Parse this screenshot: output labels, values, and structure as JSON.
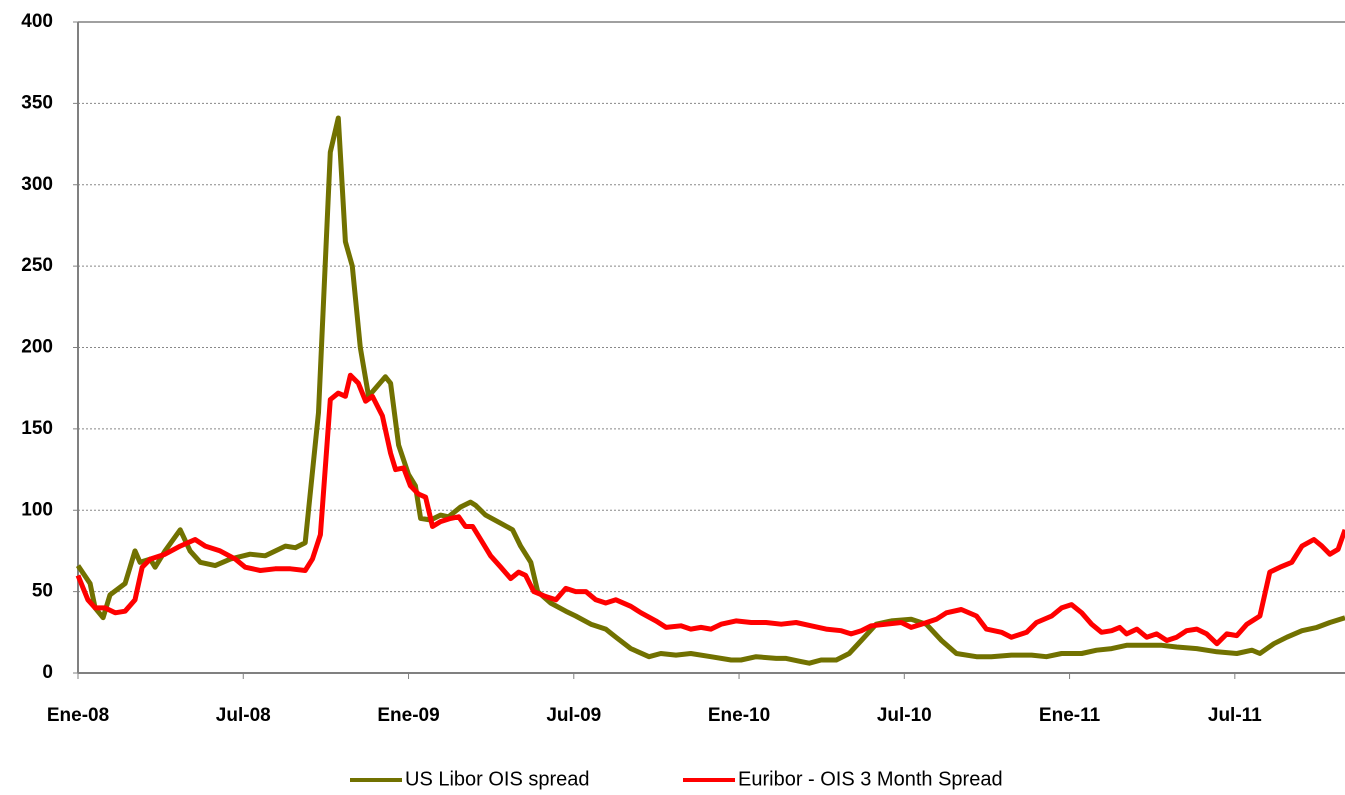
{
  "chart_data": {
    "type": "line",
    "xlim": [
      0,
      46
    ],
    "ylim": [
      0,
      400
    ],
    "yticks": [
      0,
      50,
      100,
      150,
      200,
      250,
      300,
      350,
      400
    ],
    "xticks": [
      {
        "value": 0,
        "label": "Ene-08"
      },
      {
        "value": 6,
        "label": "Jul-08"
      },
      {
        "value": 12,
        "label": "Ene-09"
      },
      {
        "value": 18,
        "label": "Jul-09"
      },
      {
        "value": 24,
        "label": "Ene-10"
      },
      {
        "value": 30,
        "label": "Jul-10"
      },
      {
        "value": 36,
        "label": "Ene-11"
      },
      {
        "value": 42,
        "label": "Jul-11"
      }
    ],
    "grid": true,
    "legend": "bottom",
    "series": [
      {
        "name": "US Libor OIS spread",
        "color": "#717100",
        "x": [
          0,
          0.44,
          0.62,
          0.91,
          1.16,
          1.71,
          2.07,
          2.25,
          2.62,
          2.8,
          3.16,
          3.71,
          4.07,
          4.44,
          4.98,
          5.53,
          6.25,
          6.8,
          7.53,
          7.89,
          8.25,
          8.73,
          9.16,
          9.45,
          9.71,
          9.96,
          10.25,
          10.55,
          10.8,
          11.16,
          11.35,
          11.64,
          12,
          12.25,
          12.44,
          12.8,
          13.16,
          13.45,
          13.89,
          14.25,
          14.44,
          14.8,
          15.35,
          15.78,
          16.07,
          16.44,
          16.69,
          17.16,
          17.71,
          18.07,
          18.62,
          19.16,
          19.53,
          20.07,
          20.73,
          21.16,
          21.71,
          22.25,
          22.98,
          23.71,
          24.07,
          24.62,
          25.35,
          25.71,
          26.25,
          26.55,
          26.98,
          27.53,
          28,
          28.44,
          28.98,
          29.53,
          30.25,
          30.8,
          31.35,
          31.89,
          32.62,
          33.16,
          33.89,
          34.62,
          35.16,
          35.71,
          36.44,
          36.98,
          37.53,
          38.07,
          38.8,
          39.35,
          39.89,
          40.62,
          41.35,
          42.07,
          42.62,
          42.91,
          43.42,
          43.89,
          44.44,
          44.98,
          45.45,
          46
        ],
        "values": [
          66,
          55,
          40,
          34,
          48,
          55,
          75,
          68,
          70,
          65,
          75,
          88,
          75,
          68,
          66,
          70,
          73,
          72,
          78,
          77,
          80,
          160,
          320,
          341,
          265,
          250,
          200,
          170,
          175,
          182,
          178,
          140,
          122,
          115,
          95,
          94,
          97,
          96,
          102,
          105,
          103,
          97,
          92,
          88,
          78,
          68,
          50,
          43,
          38,
          35,
          30,
          27,
          22,
          15,
          10,
          12,
          11,
          12,
          10,
          8,
          8,
          10,
          9,
          9,
          7,
          6,
          8,
          8,
          12,
          20,
          30,
          32,
          33,
          30,
          20,
          12,
          10,
          10,
          11,
          11,
          10,
          12,
          12,
          14,
          15,
          17,
          17,
          17,
          16,
          15,
          13,
          12,
          14,
          12,
          18,
          22,
          26,
          28,
          31,
          34
        ]
      },
      {
        "name": "Euribor - OIS 3 Month Spread",
        "color": "#ff0000",
        "x": [
          0,
          0.36,
          0.62,
          0.98,
          1.35,
          1.71,
          2.07,
          2.33,
          2.62,
          3.16,
          3.71,
          4.25,
          4.62,
          5.16,
          5.71,
          6.07,
          6.62,
          7.16,
          7.71,
          8.25,
          8.51,
          8.8,
          9.16,
          9.45,
          9.71,
          9.89,
          10.18,
          10.44,
          10.69,
          11.05,
          11.35,
          11.53,
          11.82,
          12.07,
          12.36,
          12.62,
          12.87,
          13.16,
          13.53,
          13.82,
          14.07,
          14.33,
          14.62,
          14.98,
          15.35,
          15.71,
          16,
          16.25,
          16.55,
          16.98,
          17.35,
          17.71,
          18.07,
          18.44,
          18.8,
          19.16,
          19.53,
          20.07,
          20.44,
          20.98,
          21.35,
          21.89,
          22.25,
          22.62,
          22.98,
          23.35,
          23.89,
          24.44,
          24.98,
          25.53,
          26.07,
          26.62,
          27.16,
          27.71,
          28.07,
          28.44,
          28.8,
          29.35,
          29.89,
          30.25,
          30.62,
          31.16,
          31.53,
          32.07,
          32.62,
          32.98,
          33.53,
          33.89,
          34.44,
          34.8,
          35.35,
          35.71,
          36.07,
          36.44,
          36.8,
          37.16,
          37.53,
          37.82,
          38.07,
          38.44,
          38.8,
          39.16,
          39.53,
          39.89,
          40.25,
          40.62,
          40.98,
          41.35,
          41.71,
          42.07,
          42.44,
          42.91,
          43.27,
          43.64,
          44.07,
          44.44,
          44.87,
          45.16,
          45.45,
          45.75,
          46
        ],
        "values": [
          60,
          45,
          40,
          40,
          37,
          38,
          45,
          65,
          70,
          73,
          78,
          82,
          78,
          75,
          70,
          65,
          63,
          64,
          64,
          63,
          70,
          85,
          168,
          172,
          170,
          183,
          178,
          167,
          170,
          158,
          135,
          125,
          126,
          115,
          110,
          108,
          90,
          93,
          95,
          96,
          90,
          90,
          82,
          72,
          65,
          58,
          62,
          60,
          50,
          47,
          45,
          52,
          50,
          50,
          45,
          43,
          45,
          41,
          37,
          32,
          28,
          29,
          27,
          28,
          27,
          30,
          32,
          31,
          31,
          30,
          31,
          29,
          27,
          26,
          24,
          26,
          29,
          30,
          31,
          28,
          30,
          33,
          37,
          39,
          35,
          27,
          25,
          22,
          25,
          31,
          35,
          40,
          42,
          37,
          30,
          25,
          26,
          28,
          24,
          27,
          22,
          24,
          20,
          22,
          26,
          27,
          24,
          18,
          24,
          23,
          30,
          35,
          62,
          65,
          68,
          78,
          82,
          78,
          73,
          76,
          88
        ]
      }
    ]
  }
}
